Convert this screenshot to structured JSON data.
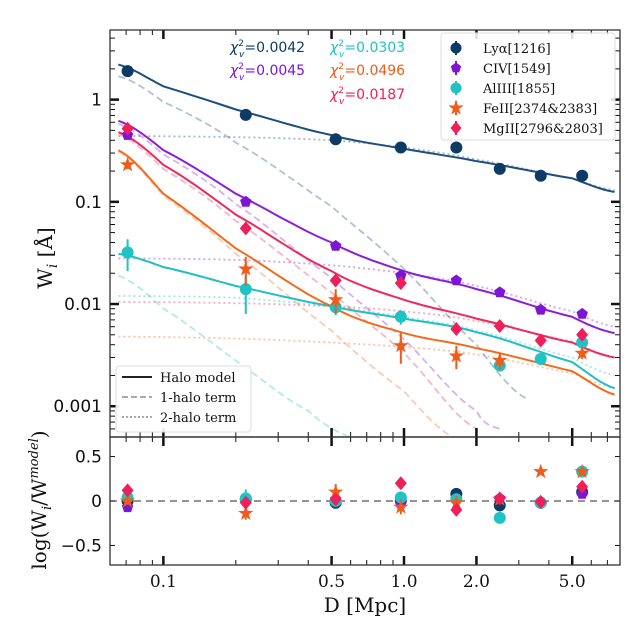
{
  "chart_data": [
    {
      "type": "scatter",
      "panel": "top",
      "title": "",
      "xlabel": "D [Mpc]",
      "ylabel": "W_i [Å]",
      "xscale": "log",
      "yscale": "log",
      "xlim": [
        0.06,
        7.9
      ],
      "ylim": [
        0.0005,
        4.8
      ],
      "y_ticks": [
        1,
        0.1,
        0.01,
        0.001
      ],
      "y_tick_labels": [
        "1",
        "0.1",
        "0.01",
        "0.001"
      ],
      "x": [
        0.071,
        0.22,
        0.52,
        0.97,
        1.65,
        2.5,
        3.7,
        5.5
      ],
      "series": [
        {
          "name": "Lyα[1216]",
          "color": "#0d3b66",
          "marker": "circle",
          "model_color": "#1c4e7e",
          "values": [
            1.9,
            0.71,
            0.41,
            0.34,
            0.34,
            0.21,
            0.18,
            0.18
          ],
          "errors": [
            0,
            0,
            0,
            0,
            0,
            0,
            0,
            0
          ],
          "chi2": "0.0042",
          "model": {
            "x": [
              0.065,
              0.1,
              0.2,
              0.5,
              1.0,
              2.0,
              5.0,
              7.5
            ],
            "y": [
              2.2,
              1.35,
              0.8,
              0.45,
              0.33,
              0.25,
              0.17,
              0.125
            ]
          },
          "one_halo": {
            "x": [
              0.065,
              0.1,
              0.2,
              0.5,
              1.0,
              2.0,
              3.2
            ],
            "y": [
              1.7,
              0.95,
              0.38,
              0.09,
              0.022,
              0.004,
              0.0012
            ]
          },
          "two_halo": {
            "x": [
              0.065,
              0.2,
              0.5,
              1.0,
              2.0,
              5.0,
              7.5
            ],
            "y": [
              0.44,
              0.43,
              0.4,
              0.34,
              0.26,
              0.17,
              0.13
            ]
          }
        },
        {
          "name": "CIV[1549]",
          "color": "#7b16d6",
          "marker": "pentagon",
          "model_color": "#8a1fd8",
          "values": [
            0.45,
            0.1,
            0.037,
            0.019,
            0.017,
            0.013,
            0.0088,
            0.008
          ],
          "errors": [
            0,
            0,
            0,
            0,
            0,
            0,
            0,
            0
          ],
          "chi2": "0.0045",
          "model": {
            "x": [
              0.065,
              0.1,
              0.2,
              0.5,
              1.0,
              2.0,
              5.0,
              7.5
            ],
            "y": [
              0.62,
              0.32,
              0.12,
              0.04,
              0.021,
              0.014,
              0.0075,
              0.0052
            ]
          },
          "one_halo": {
            "x": [
              0.065,
              0.1,
              0.2,
              0.5,
              1.0,
              2.0,
              2.5
            ],
            "y": [
              0.58,
              0.29,
              0.095,
              0.018,
              0.0045,
              0.0009,
              0.0006
            ]
          },
          "two_halo": {
            "x": [
              0.065,
              0.2,
              0.5,
              1.0,
              2.0,
              5.0,
              7.5
            ],
            "y": [
              0.028,
              0.027,
              0.024,
              0.02,
              0.015,
              0.0085,
              0.006
            ]
          }
        },
        {
          "name": "AlIII[1855]",
          "color": "#1fc3c3",
          "marker": "diamond-circle",
          "model_color": "#21c0c0",
          "values": [
            0.032,
            0.014,
            0.0093,
            0.0075,
            null,
            0.0025,
            0.0029,
            0.0042
          ],
          "errors": [
            0.011,
            0.006,
            0.0015,
            0.0012,
            0,
            0.0003,
            0.0002,
            0.0004
          ],
          "chi2": "0.0303",
          "model": {
            "x": [
              0.065,
              0.1,
              0.2,
              0.5,
              1.0,
              2.0,
              5.0,
              7.5
            ],
            "y": [
              0.031,
              0.023,
              0.015,
              0.0095,
              0.0072,
              0.0053,
              0.0027,
              0.0015
            ]
          },
          "one_halo": {
            "x": [
              0.065,
              0.1,
              0.2,
              0.4,
              0.6
            ],
            "y": [
              0.019,
              0.009,
              0.0028,
              0.0009,
              0.0005
            ]
          },
          "two_halo": {
            "x": [
              0.065,
              0.2,
              0.5,
              1.0,
              2.0,
              5.0,
              7.5
            ],
            "y": [
              0.012,
              0.0115,
              0.0095,
              0.0075,
              0.0055,
              0.003,
              0.002
            ]
          }
        },
        {
          "name": "FeII[2374&2383]",
          "color": "#f05a1a",
          "marker": "star",
          "model_color": "#f26a1b",
          "values": [
            0.23,
            0.022,
            0.011,
            0.0039,
            0.0031,
            0.0028,
            null,
            0.0033
          ],
          "errors": [
            0.02,
            0.007,
            0.003,
            0.0013,
            0.0008,
            0.0005,
            0,
            0.0004
          ],
          "chi2": "0.0496",
          "model": {
            "x": [
              0.065,
              0.1,
              0.2,
              0.5,
              1.0,
              2.0,
              5.0,
              7.5
            ],
            "y": [
              0.32,
              0.12,
              0.035,
              0.0095,
              0.0052,
              0.0037,
              0.0022,
              0.0013
            ]
          },
          "one_halo": {
            "x": [
              0.065,
              0.1,
              0.2,
              0.5,
              1.0,
              1.6
            ],
            "y": [
              0.31,
              0.115,
              0.031,
              0.0055,
              0.0014,
              0.0005
            ]
          },
          "two_halo": {
            "x": [
              0.065,
              0.2,
              0.5,
              1.0,
              2.0,
              5.0,
              7.5
            ],
            "y": [
              0.0048,
              0.0046,
              0.0042,
              0.0038,
              0.0032,
              0.0021,
              0.0015
            ]
          }
        },
        {
          "name": "MgII[2796&2803]",
          "color": "#f01e5a",
          "marker": "diamond",
          "model_color": "#ee2a5c",
          "values": [
            0.52,
            0.055,
            0.017,
            0.016,
            0.0057,
            0.0061,
            0.0044,
            0.005
          ],
          "errors": [
            0,
            0,
            0,
            0,
            0,
            0,
            0,
            0
          ],
          "chi2": "0.0187",
          "model": {
            "x": [
              0.065,
              0.1,
              0.2,
              0.5,
              1.0,
              2.0,
              5.0,
              7.5
            ],
            "y": [
              0.48,
              0.23,
              0.075,
              0.021,
              0.011,
              0.0072,
              0.0042,
              0.003
            ]
          },
          "one_halo": {
            "x": [
              0.065,
              0.1,
              0.2,
              0.5,
              1.0,
              2.0
            ],
            "y": [
              0.46,
              0.21,
              0.065,
              0.013,
              0.0033,
              0.0006
            ]
          },
          "two_halo": {
            "x": [
              0.065,
              0.2,
              0.5,
              1.0,
              2.0,
              5.0,
              7.5
            ],
            "y": [
              0.0105,
              0.0102,
              0.0095,
              0.0085,
              0.0068,
              0.0043,
              0.003
            ]
          }
        }
      ],
      "legend": {
        "placement": "top-right",
        "entries": [
          "Lyα[1216]",
          "CIV[1549]",
          "AlIII[1855]",
          "FeII[2374&2383]",
          "MgII[2796&2803]"
        ]
      },
      "line_legend": {
        "placement": "bottom-left",
        "entries": [
          "Halo model",
          "1-halo term",
          "2-halo term"
        ]
      },
      "annotations": [
        {
          "text": "χ²ᵥ=0.0042",
          "series": "Lyα[1216]"
        },
        {
          "text": "χ²ᵥ=0.0045",
          "series": "CIV[1549]"
        },
        {
          "text": "χ²ᵥ=0.0303",
          "series": "AlIII[1855]"
        },
        {
          "text": "χ²ᵥ=0.0496",
          "series": "FeII[2374&2383]"
        },
        {
          "text": "χ²ᵥ=0.0187",
          "series": "MgII[2796&2803]"
        }
      ]
    },
    {
      "type": "scatter",
      "panel": "bottom",
      "xlabel": "D [Mpc]",
      "ylabel": "log(W_i/W_i^model)",
      "xscale": "log",
      "xlim": [
        0.06,
        7.9
      ],
      "ylim": [
        -0.72,
        0.72
      ],
      "y_ticks": [
        0.5,
        0,
        -0.5
      ],
      "y_tick_labels": [
        "0.5",
        "0",
        "−0.5"
      ],
      "x_ticks": [
        0.1,
        0.5,
        1.0,
        2.0,
        5.0
      ],
      "x_tick_labels": [
        "0.1",
        "0.5",
        "1.0",
        "2.0",
        "5.0"
      ],
      "reference_line": 0,
      "x": [
        0.071,
        0.22,
        0.52,
        0.97,
        1.65,
        2.5,
        3.7,
        5.5
      ],
      "series": [
        {
          "name": "Lyα[1216]",
          "values": [
            0.0,
            0.02,
            -0.02,
            0.0,
            0.08,
            -0.05,
            -0.02,
            0.1
          ]
        },
        {
          "name": "CIV[1549]",
          "values": [
            -0.07,
            0.03,
            0.02,
            -0.03,
            0.03,
            0.03,
            -0.02,
            0.08
          ]
        },
        {
          "name": "AlIII[1855]",
          "values": [
            0.04,
            0.03,
            0.0,
            0.04,
            0.02,
            -0.19,
            -0.02,
            0.33
          ]
        },
        {
          "name": "FeII[2374&2383]",
          "values": [
            0.0,
            -0.14,
            0.1,
            -0.07,
            -0.02,
            0.02,
            0.33,
            0.33
          ]
        },
        {
          "name": "MgII[2796&2803]",
          "values": [
            0.12,
            -0.02,
            0.02,
            0.2,
            -0.1,
            0.03,
            -0.01,
            0.16
          ]
        }
      ],
      "error_bars": {
        "AlIII[1855]": [
          0.08,
          0.1,
          0.04,
          0.05,
          0.02,
          0.03,
          0.02,
          0.03
        ],
        "FeII[2374&2383]": [
          0.03,
          0.07,
          0.09,
          0.08,
          0.05,
          0.05,
          0.0,
          0.04
        ]
      }
    }
  ],
  "labels": {
    "xlabel": "D [Mpc]",
    "ylabel_top_main": "W",
    "ylabel_top_sub": "i",
    "ylabel_top_unit": " [Å]",
    "ylabel_bottom": "log(W",
    "ylabel_bottom_sub1": "i",
    "ylabel_bottom_mid": "/W",
    "ylabel_bottom_sub2": "i",
    "ylabel_bottom_sup": "model",
    "ylabel_bottom_end": ")"
  }
}
